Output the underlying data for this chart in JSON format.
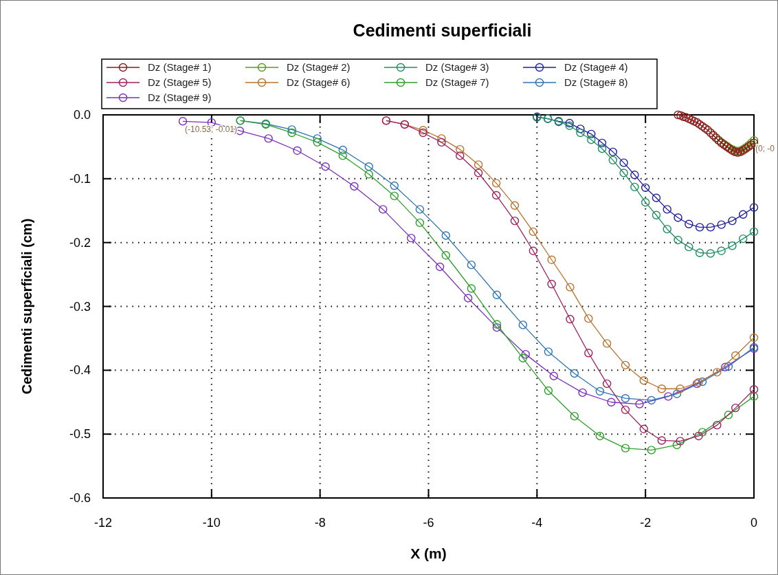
{
  "chart_data": {
    "type": "line",
    "title": "Cedimenti superficiali",
    "xlabel": "X (m)",
    "ylabel": "Cedimenti superficiali (cm)",
    "xlim": [
      -12,
      0
    ],
    "xticks": [
      -12,
      -10,
      -8,
      -6,
      -4,
      -2,
      0
    ],
    "ylim": [
      -0.6,
      0
    ],
    "yticks": [
      {
        "value": 0,
        "label": "0.0"
      },
      -0.1,
      -0.2,
      -0.3,
      -0.4,
      -0.5,
      -0.6
    ],
    "grid": true,
    "legend": "top",
    "marker": "circle",
    "line_style": "solid",
    "annotations": [
      {
        "text": "(-10.53; -0.01)",
        "x": -10.53,
        "y": -0.01
      },
      {
        "text": "(0; -0",
        "x": 0,
        "y": -0.04
      }
    ],
    "series": [
      {
        "name": "Dz (Stage# 1)",
        "color": "#8b1a1a",
        "x": [
          -1.4,
          -1.35,
          -1.3,
          -1.25,
          -1.2,
          -1.15,
          -1.1,
          -1.05,
          -1.0,
          -0.95,
          -0.9,
          -0.85,
          -0.8,
          -0.75,
          -0.7,
          -0.65,
          -0.6,
          -0.55,
          -0.5,
          -0.45,
          -0.4,
          -0.35,
          -0.3,
          -0.25,
          -0.2,
          -0.15,
          -0.1,
          -0.05,
          0
        ],
        "values": [
          0,
          -0.001,
          -0.003,
          -0.004,
          -0.006,
          -0.008,
          -0.01,
          -0.012,
          -0.015,
          -0.018,
          -0.021,
          -0.024,
          -0.028,
          -0.032,
          -0.036,
          -0.04,
          -0.044,
          -0.047,
          -0.05,
          -0.053,
          -0.056,
          -0.058,
          -0.059,
          -0.058,
          -0.056,
          -0.053,
          -0.05,
          -0.047,
          -0.044
        ]
      },
      {
        "name": "Dz (Stage# 2)",
        "color": "#5a9a1a",
        "x": [
          -0.75,
          -0.7,
          -0.65,
          -0.6,
          -0.55,
          -0.5,
          -0.45,
          -0.4,
          -0.35,
          -0.3,
          -0.25,
          -0.2,
          -0.15,
          -0.1,
          -0.05,
          0
        ],
        "values": [
          -0.032,
          -0.036,
          -0.04,
          -0.043,
          -0.046,
          -0.049,
          -0.052,
          -0.054,
          -0.056,
          -0.057,
          -0.056,
          -0.054,
          -0.051,
          -0.048,
          -0.044,
          -0.04
        ]
      },
      {
        "name": "Dz (Stage# 3)",
        "color": "#1e9060",
        "x": [
          -4,
          -3.8,
          -3.6,
          -3.4,
          -3.2,
          -3,
          -2.8,
          -2.6,
          -2.4,
          -2.2,
          -2,
          -1.8,
          -1.6,
          -1.4,
          -1.2,
          -1,
          -0.8,
          -0.6,
          -0.4,
          -0.2,
          0
        ],
        "values": [
          -0.004,
          -0.006,
          -0.011,
          -0.017,
          -0.028,
          -0.039,
          -0.053,
          -0.071,
          -0.091,
          -0.113,
          -0.137,
          -0.157,
          -0.179,
          -0.196,
          -0.207,
          -0.216,
          -0.217,
          -0.213,
          -0.205,
          -0.194,
          -0.183
        ]
      },
      {
        "name": "Dz (Stage# 4)",
        "color": "#1f1fa0",
        "x": [
          -4,
          -3.8,
          -3.6,
          -3.4,
          -3.2,
          -3,
          -2.8,
          -2.6,
          -2.4,
          -2.2,
          -2,
          -1.8,
          -1.6,
          -1.4,
          -1.2,
          -1,
          -0.8,
          -0.6,
          -0.4,
          -0.2,
          0
        ],
        "values": [
          -0.003,
          -0.006,
          -0.01,
          -0.013,
          -0.022,
          -0.03,
          -0.044,
          -0.058,
          -0.075,
          -0.094,
          -0.114,
          -0.13,
          -0.148,
          -0.161,
          -0.171,
          -0.176,
          -0.176,
          -0.172,
          -0.166,
          -0.156,
          -0.145
        ]
      },
      {
        "name": "Dz (Stage# 5)",
        "color": "#a0205e",
        "x": [
          -6.78,
          -6.44,
          -6.1,
          -5.76,
          -5.42,
          -5.08,
          -4.75,
          -4.41,
          -4.07,
          -3.73,
          -3.39,
          -3.05,
          -2.71,
          -2.37,
          -2.03,
          -1.7,
          -1.36,
          -1.02,
          -0.68,
          -0.34,
          0
        ],
        "values": [
          -0.009,
          -0.015,
          -0.028,
          -0.043,
          -0.064,
          -0.091,
          -0.126,
          -0.166,
          -0.213,
          -0.265,
          -0.32,
          -0.373,
          -0.421,
          -0.462,
          -0.492,
          -0.51,
          -0.511,
          -0.503,
          -0.486,
          -0.459,
          -0.43
        ]
      },
      {
        "name": "Dz (Stage# 6)",
        "color": "#b8732e",
        "x": [
          -6.78,
          -6.44,
          -6.1,
          -5.76,
          -5.42,
          -5.08,
          -4.75,
          -4.41,
          -4.07,
          -3.73,
          -3.39,
          -3.05,
          -2.71,
          -2.37,
          -2.03,
          -1.7,
          -1.36,
          -1.02,
          -0.68,
          -0.34,
          0
        ],
        "values": [
          -0.009,
          -0.015,
          -0.024,
          -0.037,
          -0.054,
          -0.078,
          -0.107,
          -0.142,
          -0.183,
          -0.227,
          -0.27,
          -0.319,
          -0.358,
          -0.392,
          -0.416,
          -0.429,
          -0.429,
          -0.419,
          -0.403,
          -0.377,
          -0.349
        ]
      },
      {
        "name": "Dz (Stage# 7)",
        "color": "#2ca02c",
        "x": [
          -9.47,
          -9,
          -8.52,
          -8.05,
          -7.58,
          -7.1,
          -6.63,
          -6.16,
          -5.68,
          -5.21,
          -4.74,
          -4.26,
          -3.79,
          -3.31,
          -2.84,
          -2.37,
          -1.89,
          -1.42,
          -0.95,
          -0.47,
          0
        ],
        "values": [
          -0.009,
          -0.015,
          -0.028,
          -0.043,
          -0.064,
          -0.093,
          -0.127,
          -0.169,
          -0.22,
          -0.272,
          -0.328,
          -0.381,
          -0.432,
          -0.472,
          -0.503,
          -0.522,
          -0.525,
          -0.517,
          -0.497,
          -0.47,
          -0.441
        ]
      },
      {
        "name": "Dz (Stage# 8)",
        "color": "#2e75b6",
        "x": [
          -9.47,
          -9,
          -8.52,
          -8.05,
          -7.58,
          -7.1,
          -6.63,
          -6.16,
          -5.68,
          -5.21,
          -4.74,
          -4.26,
          -3.79,
          -3.31,
          -2.84,
          -2.37,
          -1.89,
          -1.42,
          -0.95,
          -0.47,
          0
        ],
        "values": [
          -0.009,
          -0.014,
          -0.023,
          -0.037,
          -0.055,
          -0.081,
          -0.111,
          -0.148,
          -0.189,
          -0.235,
          -0.282,
          -0.329,
          -0.371,
          -0.405,
          -0.433,
          -0.444,
          -0.447,
          -0.437,
          -0.418,
          -0.394,
          -0.364
        ]
      },
      {
        "name": "Dz (Stage# 9)",
        "color": "#7b2fc0",
        "x": [
          -10.53,
          -10,
          -9.48,
          -8.95,
          -8.42,
          -7.9,
          -7.37,
          -6.84,
          -6.32,
          -5.79,
          -5.27,
          -4.74,
          -4.21,
          -3.69,
          -3.16,
          -2.63,
          -2.11,
          -1.58,
          -1.05,
          -0.53,
          0
        ],
        "values": [
          -0.01,
          -0.012,
          -0.025,
          -0.037,
          -0.056,
          -0.081,
          -0.112,
          -0.148,
          -0.193,
          -0.238,
          -0.287,
          -0.333,
          -0.375,
          -0.409,
          -0.435,
          -0.45,
          -0.453,
          -0.441,
          -0.421,
          -0.395,
          -0.366
        ]
      }
    ]
  }
}
